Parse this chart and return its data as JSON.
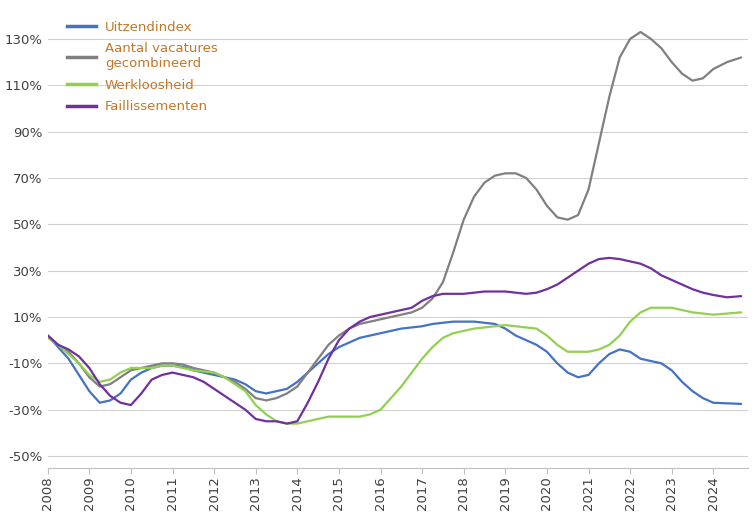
{
  "legend_entries": [
    {
      "label": "Uitzendindex",
      "color": "#4472C4"
    },
    {
      "label": "Aantal vacatures\ngecombineerd",
      "color": "#808080"
    },
    {
      "label": "Werkloosheid",
      "color": "#92D050"
    },
    {
      "label": "Faillissementen",
      "color": "#7030A0"
    }
  ],
  "legend_text_color": "#C0782A",
  "ylim": [
    -55,
    145
  ],
  "yticks": [
    -50,
    -30,
    -10,
    10,
    30,
    50,
    70,
    90,
    110,
    130
  ],
  "ytick_labels": [
    "-50%",
    "-30%",
    "-10%",
    "10%",
    "30%",
    "50%",
    "70%",
    "90%",
    "110%",
    "130%"
  ],
  "background_color": "#FFFFFF",
  "grid_color": "#D0D0D0",
  "series": {
    "uitzendindex": {
      "color": "#4472C4",
      "points": [
        [
          2008.0,
          2.0
        ],
        [
          2008.25,
          -3.0
        ],
        [
          2008.5,
          -8.0
        ],
        [
          2008.75,
          -15.0
        ],
        [
          2009.0,
          -22.0
        ],
        [
          2009.25,
          -27.0
        ],
        [
          2009.5,
          -26.0
        ],
        [
          2009.75,
          -23.0
        ],
        [
          2010.0,
          -17.0
        ],
        [
          2010.25,
          -14.0
        ],
        [
          2010.5,
          -12.0
        ],
        [
          2010.75,
          -11.0
        ],
        [
          2011.0,
          -11.0
        ],
        [
          2011.25,
          -11.5
        ],
        [
          2011.5,
          -13.0
        ],
        [
          2011.75,
          -14.0
        ],
        [
          2012.0,
          -15.0
        ],
        [
          2012.25,
          -16.0
        ],
        [
          2012.5,
          -17.0
        ],
        [
          2012.75,
          -19.0
        ],
        [
          2013.0,
          -22.0
        ],
        [
          2013.25,
          -23.0
        ],
        [
          2013.5,
          -22.0
        ],
        [
          2013.75,
          -21.0
        ],
        [
          2014.0,
          -18.0
        ],
        [
          2014.25,
          -14.0
        ],
        [
          2014.5,
          -10.0
        ],
        [
          2014.75,
          -6.0
        ],
        [
          2015.0,
          -3.0
        ],
        [
          2015.25,
          -1.0
        ],
        [
          2015.5,
          1.0
        ],
        [
          2015.75,
          2.0
        ],
        [
          2016.0,
          3.0
        ],
        [
          2016.25,
          4.0
        ],
        [
          2016.5,
          5.0
        ],
        [
          2016.75,
          5.5
        ],
        [
          2017.0,
          6.0
        ],
        [
          2017.25,
          7.0
        ],
        [
          2017.5,
          7.5
        ],
        [
          2017.75,
          8.0
        ],
        [
          2018.0,
          8.0
        ],
        [
          2018.25,
          8.0
        ],
        [
          2018.5,
          7.5
        ],
        [
          2018.75,
          7.0
        ],
        [
          2019.0,
          5.0
        ],
        [
          2019.25,
          2.0
        ],
        [
          2019.5,
          0.0
        ],
        [
          2019.75,
          -2.0
        ],
        [
          2020.0,
          -5.0
        ],
        [
          2020.25,
          -10.0
        ],
        [
          2020.5,
          -14.0
        ],
        [
          2020.75,
          -16.0
        ],
        [
          2021.0,
          -15.0
        ],
        [
          2021.25,
          -10.0
        ],
        [
          2021.5,
          -6.0
        ],
        [
          2021.75,
          -4.0
        ],
        [
          2022.0,
          -5.0
        ],
        [
          2022.25,
          -8.0
        ],
        [
          2022.5,
          -9.0
        ],
        [
          2022.75,
          -10.0
        ],
        [
          2023.0,
          -13.0
        ],
        [
          2023.25,
          -18.0
        ],
        [
          2023.5,
          -22.0
        ],
        [
          2023.75,
          -25.0
        ],
        [
          2024.0,
          -27.0
        ],
        [
          2024.67,
          -27.5
        ]
      ]
    },
    "vacatures": {
      "color": "#808080",
      "points": [
        [
          2008.0,
          2.0
        ],
        [
          2008.25,
          -2.0
        ],
        [
          2008.5,
          -5.0
        ],
        [
          2008.75,
          -10.0
        ],
        [
          2009.0,
          -16.0
        ],
        [
          2009.25,
          -20.0
        ],
        [
          2009.5,
          -19.0
        ],
        [
          2009.75,
          -16.0
        ],
        [
          2010.0,
          -13.0
        ],
        [
          2010.25,
          -12.0
        ],
        [
          2010.5,
          -11.0
        ],
        [
          2010.75,
          -10.0
        ],
        [
          2011.0,
          -10.0
        ],
        [
          2011.25,
          -10.5
        ],
        [
          2011.5,
          -12.0
        ],
        [
          2011.75,
          -13.0
        ],
        [
          2012.0,
          -14.0
        ],
        [
          2012.25,
          -16.0
        ],
        [
          2012.5,
          -18.0
        ],
        [
          2012.75,
          -21.0
        ],
        [
          2013.0,
          -25.0
        ],
        [
          2013.25,
          -26.0
        ],
        [
          2013.5,
          -25.0
        ],
        [
          2013.75,
          -23.0
        ],
        [
          2014.0,
          -20.0
        ],
        [
          2014.25,
          -14.0
        ],
        [
          2014.5,
          -8.0
        ],
        [
          2014.75,
          -2.0
        ],
        [
          2015.0,
          2.0
        ],
        [
          2015.25,
          5.0
        ],
        [
          2015.5,
          7.0
        ],
        [
          2015.75,
          8.0
        ],
        [
          2016.0,
          9.0
        ],
        [
          2016.25,
          10.0
        ],
        [
          2016.5,
          11.0
        ],
        [
          2016.75,
          12.0
        ],
        [
          2017.0,
          14.0
        ],
        [
          2017.25,
          18.0
        ],
        [
          2017.5,
          25.0
        ],
        [
          2017.75,
          38.0
        ],
        [
          2018.0,
          52.0
        ],
        [
          2018.25,
          62.0
        ],
        [
          2018.5,
          68.0
        ],
        [
          2018.75,
          71.0
        ],
        [
          2019.0,
          72.0
        ],
        [
          2019.25,
          72.0
        ],
        [
          2019.5,
          70.0
        ],
        [
          2019.75,
          65.0
        ],
        [
          2020.0,
          58.0
        ],
        [
          2020.25,
          53.0
        ],
        [
          2020.5,
          52.0
        ],
        [
          2020.75,
          54.0
        ],
        [
          2021.0,
          65.0
        ],
        [
          2021.25,
          85.0
        ],
        [
          2021.5,
          105.0
        ],
        [
          2021.75,
          122.0
        ],
        [
          2022.0,
          130.0
        ],
        [
          2022.25,
          133.0
        ],
        [
          2022.5,
          130.0
        ],
        [
          2022.75,
          126.0
        ],
        [
          2023.0,
          120.0
        ],
        [
          2023.25,
          115.0
        ],
        [
          2023.5,
          112.0
        ],
        [
          2023.75,
          113.0
        ],
        [
          2024.0,
          117.0
        ],
        [
          2024.33,
          120.0
        ],
        [
          2024.67,
          122.0
        ]
      ]
    },
    "werkloosheid": {
      "color": "#92D050",
      "points": [
        [
          2008.0,
          1.0
        ],
        [
          2008.25,
          -2.0
        ],
        [
          2008.5,
          -6.0
        ],
        [
          2008.75,
          -10.0
        ],
        [
          2009.0,
          -15.0
        ],
        [
          2009.25,
          -18.0
        ],
        [
          2009.5,
          -17.0
        ],
        [
          2009.75,
          -14.0
        ],
        [
          2010.0,
          -12.0
        ],
        [
          2010.25,
          -12.0
        ],
        [
          2010.5,
          -12.0
        ],
        [
          2010.75,
          -11.0
        ],
        [
          2011.0,
          -11.0
        ],
        [
          2011.25,
          -12.0
        ],
        [
          2011.5,
          -13.0
        ],
        [
          2011.75,
          -13.5
        ],
        [
          2012.0,
          -14.0
        ],
        [
          2012.25,
          -16.0
        ],
        [
          2012.5,
          -19.0
        ],
        [
          2012.75,
          -22.0
        ],
        [
          2013.0,
          -28.0
        ],
        [
          2013.25,
          -32.0
        ],
        [
          2013.5,
          -35.0
        ],
        [
          2013.75,
          -36.0
        ],
        [
          2014.0,
          -36.0
        ],
        [
          2014.25,
          -35.0
        ],
        [
          2014.5,
          -34.0
        ],
        [
          2014.75,
          -33.0
        ],
        [
          2015.0,
          -33.0
        ],
        [
          2015.25,
          -33.0
        ],
        [
          2015.5,
          -33.0
        ],
        [
          2015.75,
          -32.0
        ],
        [
          2016.0,
          -30.0
        ],
        [
          2016.25,
          -25.0
        ],
        [
          2016.5,
          -20.0
        ],
        [
          2016.75,
          -14.0
        ],
        [
          2017.0,
          -8.0
        ],
        [
          2017.25,
          -3.0
        ],
        [
          2017.5,
          1.0
        ],
        [
          2017.75,
          3.0
        ],
        [
          2018.0,
          4.0
        ],
        [
          2018.25,
          5.0
        ],
        [
          2018.5,
          5.5
        ],
        [
          2018.75,
          6.0
        ],
        [
          2019.0,
          6.5
        ],
        [
          2019.25,
          6.0
        ],
        [
          2019.5,
          5.5
        ],
        [
          2019.75,
          5.0
        ],
        [
          2020.0,
          2.0
        ],
        [
          2020.25,
          -2.0
        ],
        [
          2020.5,
          -5.0
        ],
        [
          2020.75,
          -5.0
        ],
        [
          2021.0,
          -5.0
        ],
        [
          2021.25,
          -4.0
        ],
        [
          2021.5,
          -2.0
        ],
        [
          2021.75,
          2.0
        ],
        [
          2022.0,
          8.0
        ],
        [
          2022.25,
          12.0
        ],
        [
          2022.5,
          14.0
        ],
        [
          2022.75,
          14.0
        ],
        [
          2023.0,
          14.0
        ],
        [
          2023.25,
          13.0
        ],
        [
          2023.5,
          12.0
        ],
        [
          2023.75,
          11.5
        ],
        [
          2024.0,
          11.0
        ],
        [
          2024.33,
          11.5
        ],
        [
          2024.67,
          12.0
        ]
      ]
    },
    "faillissementen": {
      "color": "#7030A0",
      "points": [
        [
          2008.0,
          2.0
        ],
        [
          2008.25,
          -2.0
        ],
        [
          2008.5,
          -4.0
        ],
        [
          2008.75,
          -7.0
        ],
        [
          2009.0,
          -12.0
        ],
        [
          2009.25,
          -19.0
        ],
        [
          2009.5,
          -24.0
        ],
        [
          2009.75,
          -27.0
        ],
        [
          2010.0,
          -28.0
        ],
        [
          2010.25,
          -23.0
        ],
        [
          2010.5,
          -17.0
        ],
        [
          2010.75,
          -15.0
        ],
        [
          2011.0,
          -14.0
        ],
        [
          2011.25,
          -15.0
        ],
        [
          2011.5,
          -16.0
        ],
        [
          2011.75,
          -18.0
        ],
        [
          2012.0,
          -21.0
        ],
        [
          2012.25,
          -24.0
        ],
        [
          2012.5,
          -27.0
        ],
        [
          2012.75,
          -30.0
        ],
        [
          2013.0,
          -34.0
        ],
        [
          2013.25,
          -35.0
        ],
        [
          2013.5,
          -35.0
        ],
        [
          2013.75,
          -36.0
        ],
        [
          2014.0,
          -35.0
        ],
        [
          2014.25,
          -27.0
        ],
        [
          2014.5,
          -18.0
        ],
        [
          2014.75,
          -8.0
        ],
        [
          2015.0,
          0.0
        ],
        [
          2015.25,
          5.0
        ],
        [
          2015.5,
          8.0
        ],
        [
          2015.75,
          10.0
        ],
        [
          2016.0,
          11.0
        ],
        [
          2016.25,
          12.0
        ],
        [
          2016.5,
          13.0
        ],
        [
          2016.75,
          14.0
        ],
        [
          2017.0,
          17.0
        ],
        [
          2017.25,
          19.0
        ],
        [
          2017.5,
          20.0
        ],
        [
          2017.75,
          20.0
        ],
        [
          2018.0,
          20.0
        ],
        [
          2018.25,
          20.5
        ],
        [
          2018.5,
          21.0
        ],
        [
          2018.75,
          21.0
        ],
        [
          2019.0,
          21.0
        ],
        [
          2019.25,
          20.5
        ],
        [
          2019.5,
          20.0
        ],
        [
          2019.75,
          20.5
        ],
        [
          2020.0,
          22.0
        ],
        [
          2020.25,
          24.0
        ],
        [
          2020.5,
          27.0
        ],
        [
          2020.75,
          30.0
        ],
        [
          2021.0,
          33.0
        ],
        [
          2021.25,
          35.0
        ],
        [
          2021.5,
          35.5
        ],
        [
          2021.75,
          35.0
        ],
        [
          2022.0,
          34.0
        ],
        [
          2022.25,
          33.0
        ],
        [
          2022.5,
          31.0
        ],
        [
          2022.75,
          28.0
        ],
        [
          2023.0,
          26.0
        ],
        [
          2023.25,
          24.0
        ],
        [
          2023.5,
          22.0
        ],
        [
          2023.75,
          20.5
        ],
        [
          2024.0,
          19.5
        ],
        [
          2024.33,
          18.5
        ],
        [
          2024.67,
          19.0
        ]
      ]
    }
  }
}
